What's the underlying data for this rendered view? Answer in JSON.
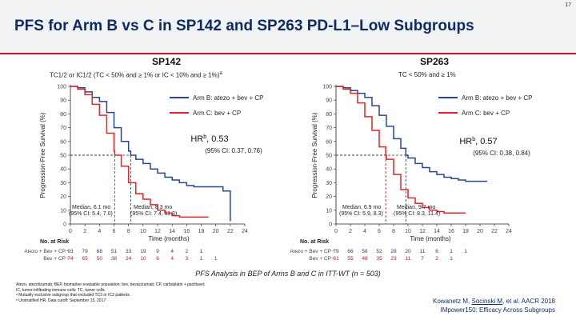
{
  "slide": {
    "number": "17",
    "title": "PFS for Arm B vs C in SP142 and SP263 PD-L1–Low Subgroups",
    "analysis_note": "PFS Analysis in BEP of Arms B and C in ITT-WT (n = 503)",
    "footnotes": [
      "Atezo, atezolizumab; BEP, biomarker evaluable population; bev, bevacizumab; CP, carboplatin + paclitaxel;",
      "IC, tumor-infiltrating immune cells; TC, tumor cells.",
      "ᵃ Mutually exclusive subgroup that excluded TC3 or IC3 patients.",
      "ᵇ Unstratified HR. Data cutoff: September 15, 2017"
    ],
    "citation": {
      "authors": "Kowanetz M, ",
      "underlined": "Socinski M",
      "rest": ", et al. AACR 2018",
      "study": "IMpower150: Efficacy Across Subgroups"
    },
    "colors": {
      "arm_b": "#27468f",
      "arm_c": "#e0242a",
      "title": "#0d2b5e",
      "rule": "#c8102e"
    }
  },
  "chart_data": [
    {
      "type": "line",
      "id": "sp142",
      "title": "SP142",
      "subtitle": "TC1/2 or IC1/2 (TC < 50% and ≥ 1% or IC < 10% and ≥ 1%)",
      "subtitle_sup": "a",
      "xlabel": "Time (months)",
      "ylabel": "Progression-Free Survival (%)",
      "xlim": [
        0,
        24
      ],
      "ylim": [
        0,
        100
      ],
      "xticks": [
        0,
        2,
        4,
        6,
        8,
        10,
        12,
        14,
        16,
        18,
        20,
        22,
        24
      ],
      "yticks": [
        0,
        10,
        20,
        30,
        40,
        50,
        60,
        70,
        80,
        90,
        100
      ],
      "legend": [
        "Arm B: atezo + bev + CP",
        "Arm C: bev + CP"
      ],
      "hr_label": "HR",
      "hr_sup": "b",
      "hr_value": ", 0.53",
      "ci": "(95% CI: 0.37, 0.76)",
      "medians": [
        {
          "line1": "Median, 6.1 mo",
          "line2": "(95% CI: 5.4, 7.0)",
          "value": 6.1
        },
        {
          "line1": "Median, 8.3 mo",
          "line2": "(95% CI: 7.4, 11.3)",
          "value": 8.3
        }
      ],
      "series": [
        {
          "name": "Arm B: atezo + bev + CP",
          "x": [
            0,
            1,
            2,
            3,
            4,
            5,
            6,
            7,
            8,
            8.3,
            9,
            10,
            11,
            12,
            13,
            14,
            15,
            16,
            17,
            18,
            19,
            20,
            21,
            22
          ],
          "y": [
            100,
            99,
            96,
            92,
            89,
            81,
            70,
            60,
            53,
            50,
            47,
            44,
            40,
            37,
            34,
            32,
            30,
            28,
            27,
            27,
            27,
            27,
            24,
            2
          ]
        },
        {
          "name": "Arm C: bev + CP",
          "x": [
            0,
            1,
            2,
            3,
            4,
            5,
            6,
            6.1,
            7,
            8,
            9,
            10,
            11,
            12,
            13,
            14,
            15,
            16,
            17,
            18,
            19
          ],
          "y": [
            100,
            98,
            94,
            87,
            79,
            66,
            53,
            50,
            42,
            30,
            22,
            18,
            14,
            10,
            8,
            6,
            5,
            5,
            5,
            5,
            5
          ]
        }
      ],
      "at_risk": {
        "title": "No. at Risk",
        "rows": [
          {
            "label": "Atezo + Bev + CP",
            "values": [
              "93",
              "79",
              "68",
              "51",
              "33",
              "19",
              "9",
              "4",
              "2",
              "1"
            ]
          },
          {
            "label": "Bev + CP",
            "values": [
              "74",
              "65",
              "50",
              "38",
              "24",
              "10",
              "6",
              "4",
              "3",
              "1",
              "1"
            ]
          }
        ]
      }
    },
    {
      "type": "line",
      "id": "sp263",
      "title": "SP263",
      "subtitle": "TC < 50% and ≥ 1%",
      "xlabel": "Time (months)",
      "ylabel": "Progression-Free Survival (%)",
      "xlim": [
        0,
        24
      ],
      "ylim": [
        0,
        100
      ],
      "xticks": [
        0,
        2,
        4,
        6,
        8,
        10,
        12,
        14,
        16,
        18,
        20,
        22,
        24
      ],
      "yticks": [
        0,
        10,
        20,
        30,
        40,
        50,
        60,
        70,
        80,
        90,
        100
      ],
      "legend": [
        "Arm B: atezo + bev + CP",
        "Arm C: bev + CP"
      ],
      "hr_label": "HR",
      "hr_sup": "b",
      "hr_value": ", 0.57",
      "ci": "(95% CI: 0.38, 0.84)",
      "medians": [
        {
          "line1": "Median, 6.9 mo",
          "line2": "(95% CI: 5.9, 8.3)",
          "value": 6.9
        },
        {
          "line1": "Median, 9.7 mo",
          "line2": "(95% CI: 8.3, 11.4)",
          "value": 9.7
        }
      ],
      "series": [
        {
          "name": "Arm B: atezo + bev + CP",
          "x": [
            0,
            1,
            2,
            3,
            4,
            5,
            6,
            7,
            8,
            9,
            9.7,
            10,
            11,
            12,
            13,
            14,
            15,
            16,
            17,
            18,
            19,
            20,
            21
          ],
          "y": [
            100,
            99,
            97,
            95,
            92,
            86,
            79,
            71,
            62,
            55,
            50,
            48,
            44,
            41,
            38,
            36,
            34,
            33,
            32,
            31,
            31,
            31,
            31
          ]
        },
        {
          "name": "Arm C: bev + CP",
          "x": [
            0,
            1,
            2,
            3,
            4,
            5,
            6,
            6.9,
            7,
            8,
            9,
            10,
            11,
            12,
            13,
            14,
            15,
            16,
            17,
            18
          ],
          "y": [
            100,
            98,
            95,
            88,
            78,
            68,
            56,
            50,
            47,
            36,
            25,
            19,
            15,
            12,
            10,
            9,
            8,
            8,
            8,
            8
          ]
        }
      ],
      "at_risk": {
        "title": "No. at Risk",
        "rows": [
          {
            "label": "Atezo + Bev + CP",
            "values": [
              "79",
              "66",
              "58",
              "52",
              "28",
              "20",
              "11",
              "6",
              "1",
              "1"
            ]
          },
          {
            "label": "Bev + CP",
            "values": [
              "61",
              "55",
              "48",
              "35",
              "23",
              "11",
              "7",
              "2",
              "1"
            ]
          }
        ]
      }
    }
  ]
}
